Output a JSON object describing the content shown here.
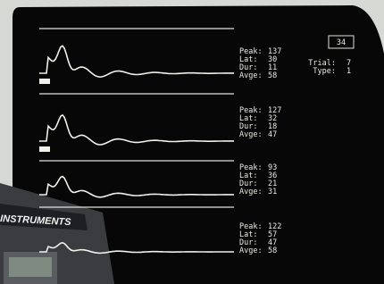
{
  "device_label": "INSTRUMENTS",
  "trial_box": "34",
  "info": [
    {
      "label": "Trial:",
      "value": "7"
    },
    {
      "label": "Type:",
      "value": "1"
    }
  ],
  "panels": [
    {
      "rows": [
        {
          "label": "Peak:",
          "value": "137"
        },
        {
          "label": "Lat:",
          "value": "30"
        },
        {
          "label": "Dur:",
          "value": "11"
        },
        {
          "label": "Avge:",
          "value": "58"
        }
      ]
    },
    {
      "rows": [
        {
          "label": "Peak:",
          "value": "127"
        },
        {
          "label": "Lat:",
          "value": "32"
        },
        {
          "label": "Dur:",
          "value": "18"
        },
        {
          "label": "Avge:",
          "value": "47"
        }
      ]
    },
    {
      "rows": [
        {
          "label": "Peak:",
          "value": "93"
        },
        {
          "label": "Lat:",
          "value": "36"
        },
        {
          "label": "Dur:",
          "value": "21"
        },
        {
          "label": "Avge:",
          "value": "31"
        }
      ]
    },
    {
      "rows": [
        {
          "label": "Peak:",
          "value": "122"
        },
        {
          "label": "Lat:",
          "value": "57"
        },
        {
          "label": "Dur:",
          "value": "47"
        },
        {
          "label": "Avge:",
          "value": "58"
        }
      ]
    }
  ]
}
